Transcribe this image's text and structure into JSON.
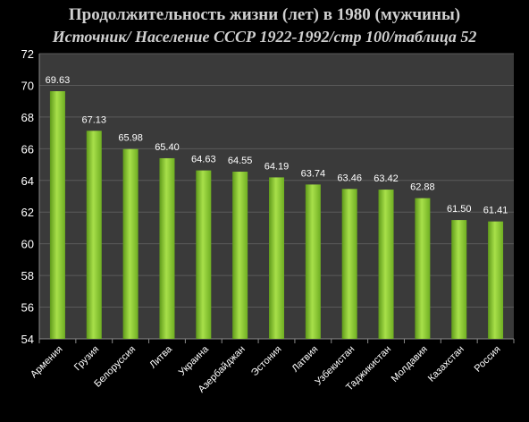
{
  "chart_data": {
    "type": "bar",
    "title": "Продолжительность жизни (лет) в 1980 (мужчины)",
    "subtitle": "Источник/ Население СССР 1922-1992/стр 100/таблица 52",
    "xlabel": "",
    "ylabel": "",
    "categories": [
      "Армения",
      "Грузия",
      "Белоруссия",
      "Литва",
      "Украина",
      "Азербайджан",
      "Эстония",
      "Латвия",
      "Узбекистан",
      "Таджикистан",
      "Молдавия",
      "Казахстан",
      "Россия"
    ],
    "values": [
      69.63,
      67.13,
      65.98,
      65.4,
      64.63,
      64.55,
      64.19,
      63.74,
      63.46,
      63.42,
      62.88,
      61.5,
      61.41
    ],
    "value_labels": [
      "69.63",
      "67.13",
      "65.98",
      "65.40",
      "64.63",
      "64.55",
      "64.19",
      "63.74",
      "63.46",
      "63.42",
      "62.88",
      "61.50",
      "61.41"
    ],
    "ylim": [
      54,
      72
    ],
    "yticks": [
      54,
      56,
      58,
      60,
      62,
      64,
      66,
      68,
      70,
      72
    ],
    "grid": true,
    "legend": "none",
    "colors": {
      "page_background": "#000000",
      "plot_background": "#3a3a3a",
      "gridline": "#5a5a5a",
      "bar_light": "#a8e04a",
      "bar_dark": "#5f9a1a",
      "text": "#ffffff",
      "title_text": "#d0d0d0"
    }
  }
}
